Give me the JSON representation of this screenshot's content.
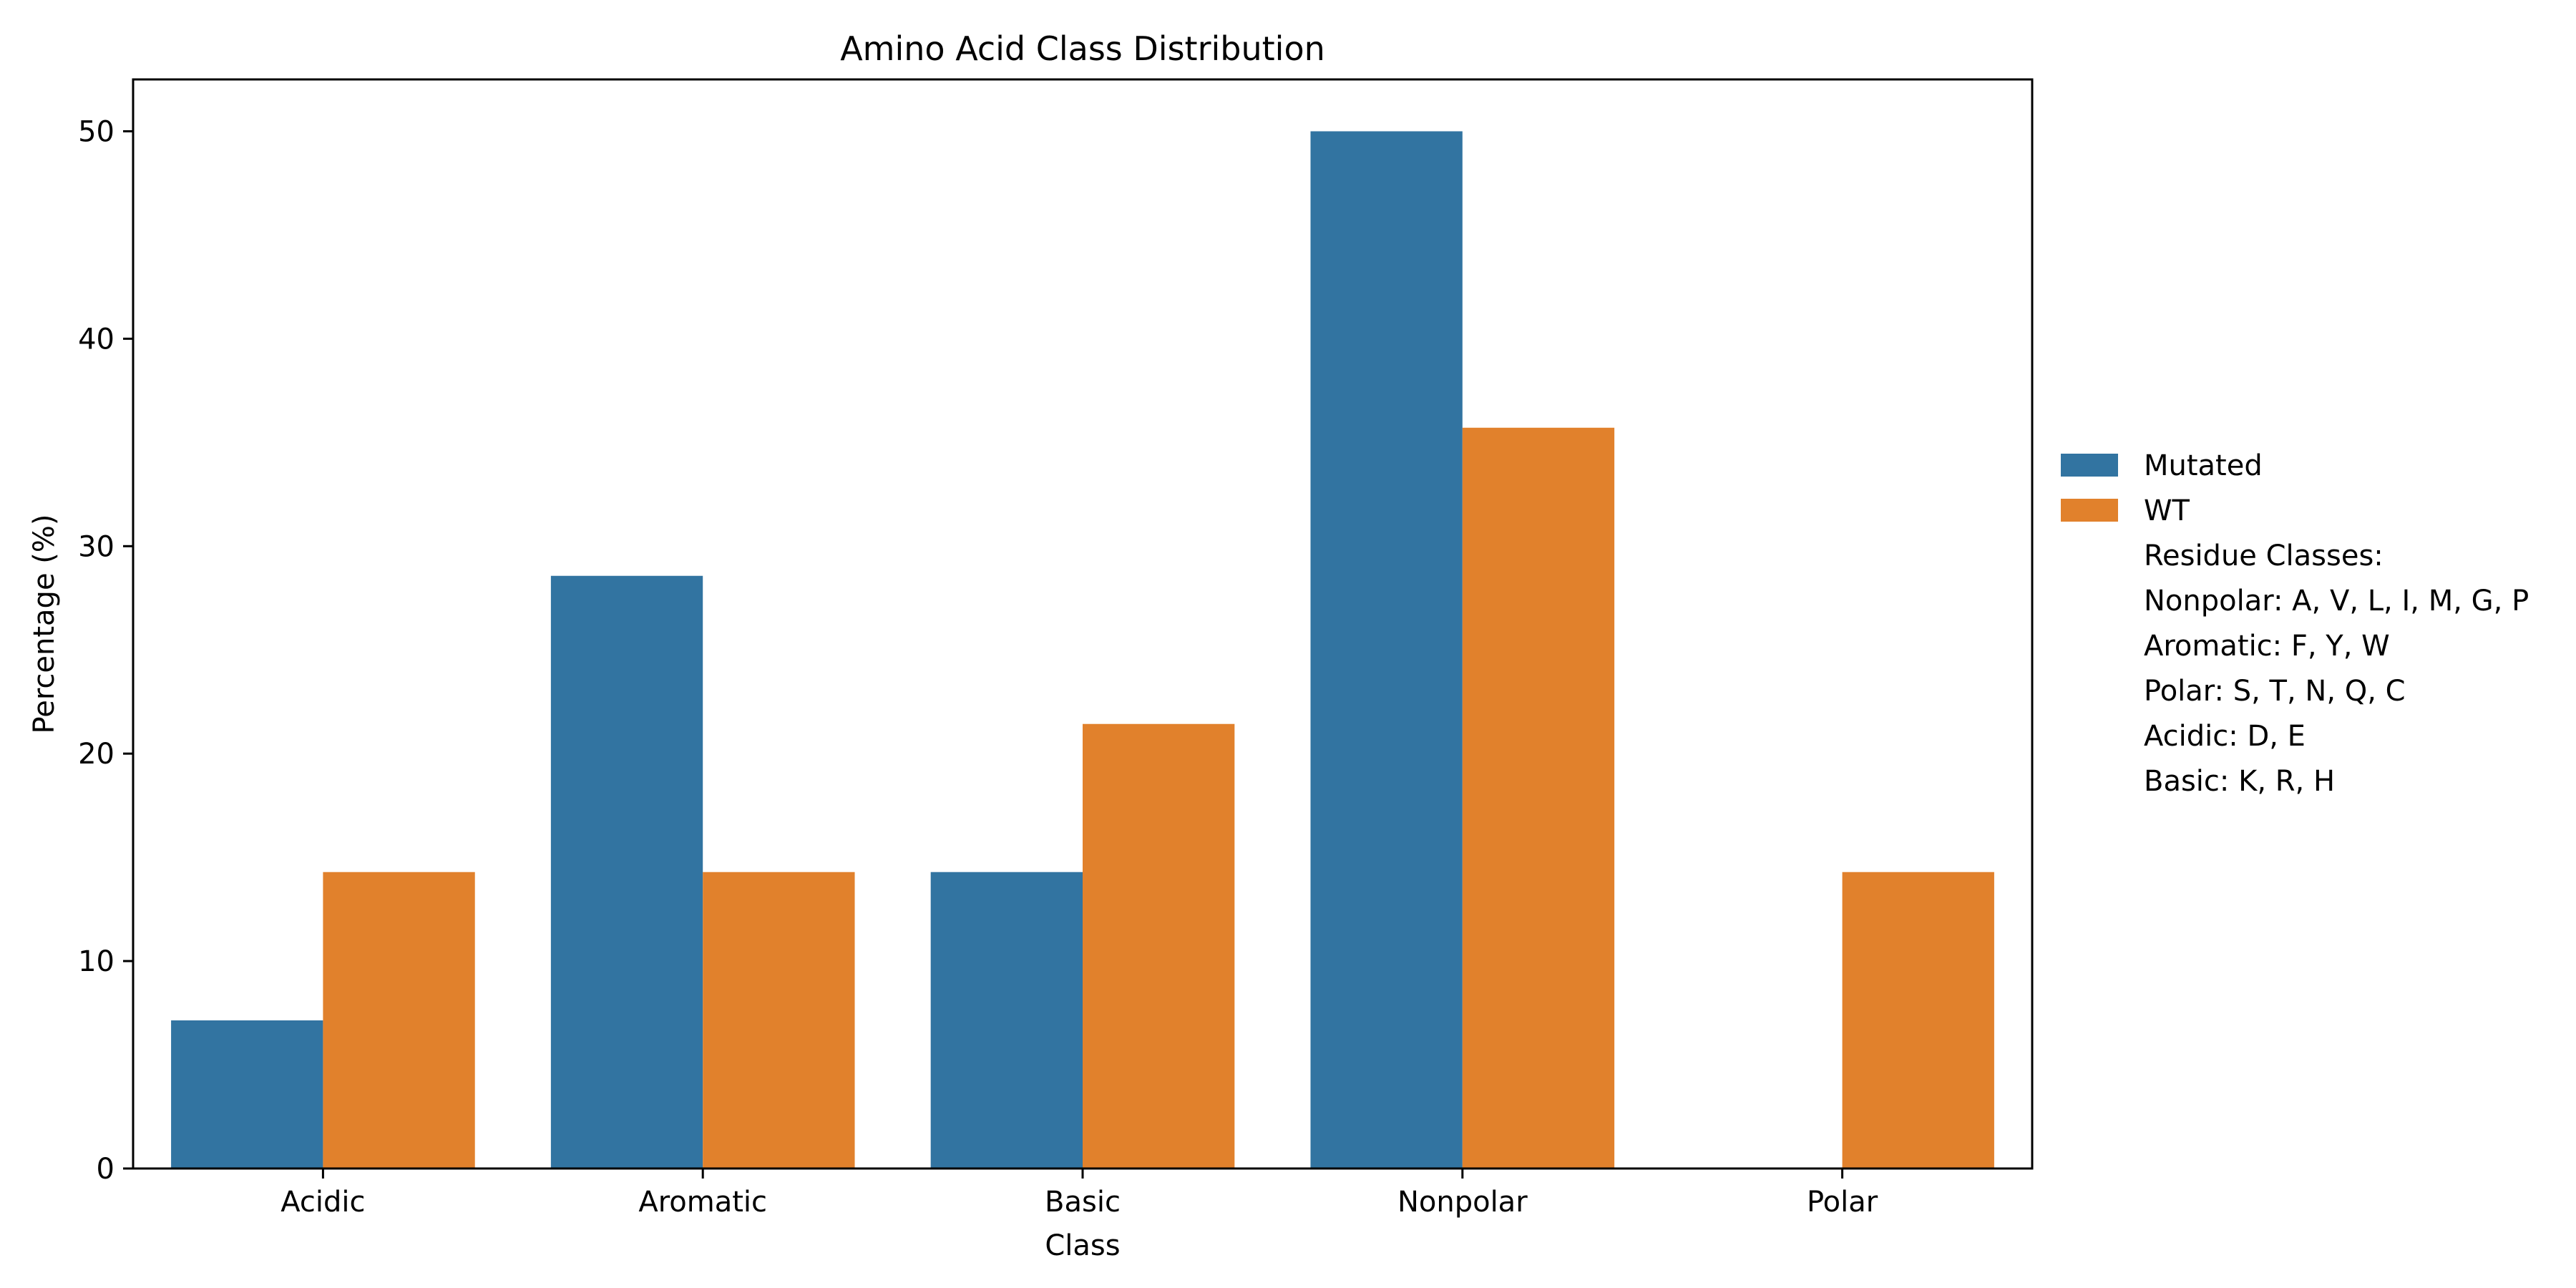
{
  "chart_data": {
    "type": "bar",
    "title": "Amino Acid Class Distribution",
    "xlabel": "Class",
    "ylabel": "Percentage (%)",
    "categories": [
      "Acidic",
      "Aromatic",
      "Basic",
      "Nonpolar",
      "Polar"
    ],
    "series": [
      {
        "name": "Mutated",
        "color": "#3274a1",
        "values": [
          7.14,
          28.57,
          14.29,
          50.0,
          0.0
        ]
      },
      {
        "name": "WT",
        "color": "#e1812c",
        "values": [
          14.29,
          14.29,
          21.43,
          35.71,
          14.29
        ]
      }
    ],
    "ylim": [
      0,
      52.5
    ],
    "yticks": [
      0,
      10,
      20,
      30,
      40,
      50
    ],
    "grid": false,
    "legend_position": "right",
    "legend_notes": [
      "Residue Classes:",
      "Nonpolar: A, V, L, I, M, G, P",
      "Aromatic: F, Y, W",
      "Polar: S, T, N, Q, C",
      "Acidic: D, E",
      "Basic: K, R, H"
    ]
  }
}
